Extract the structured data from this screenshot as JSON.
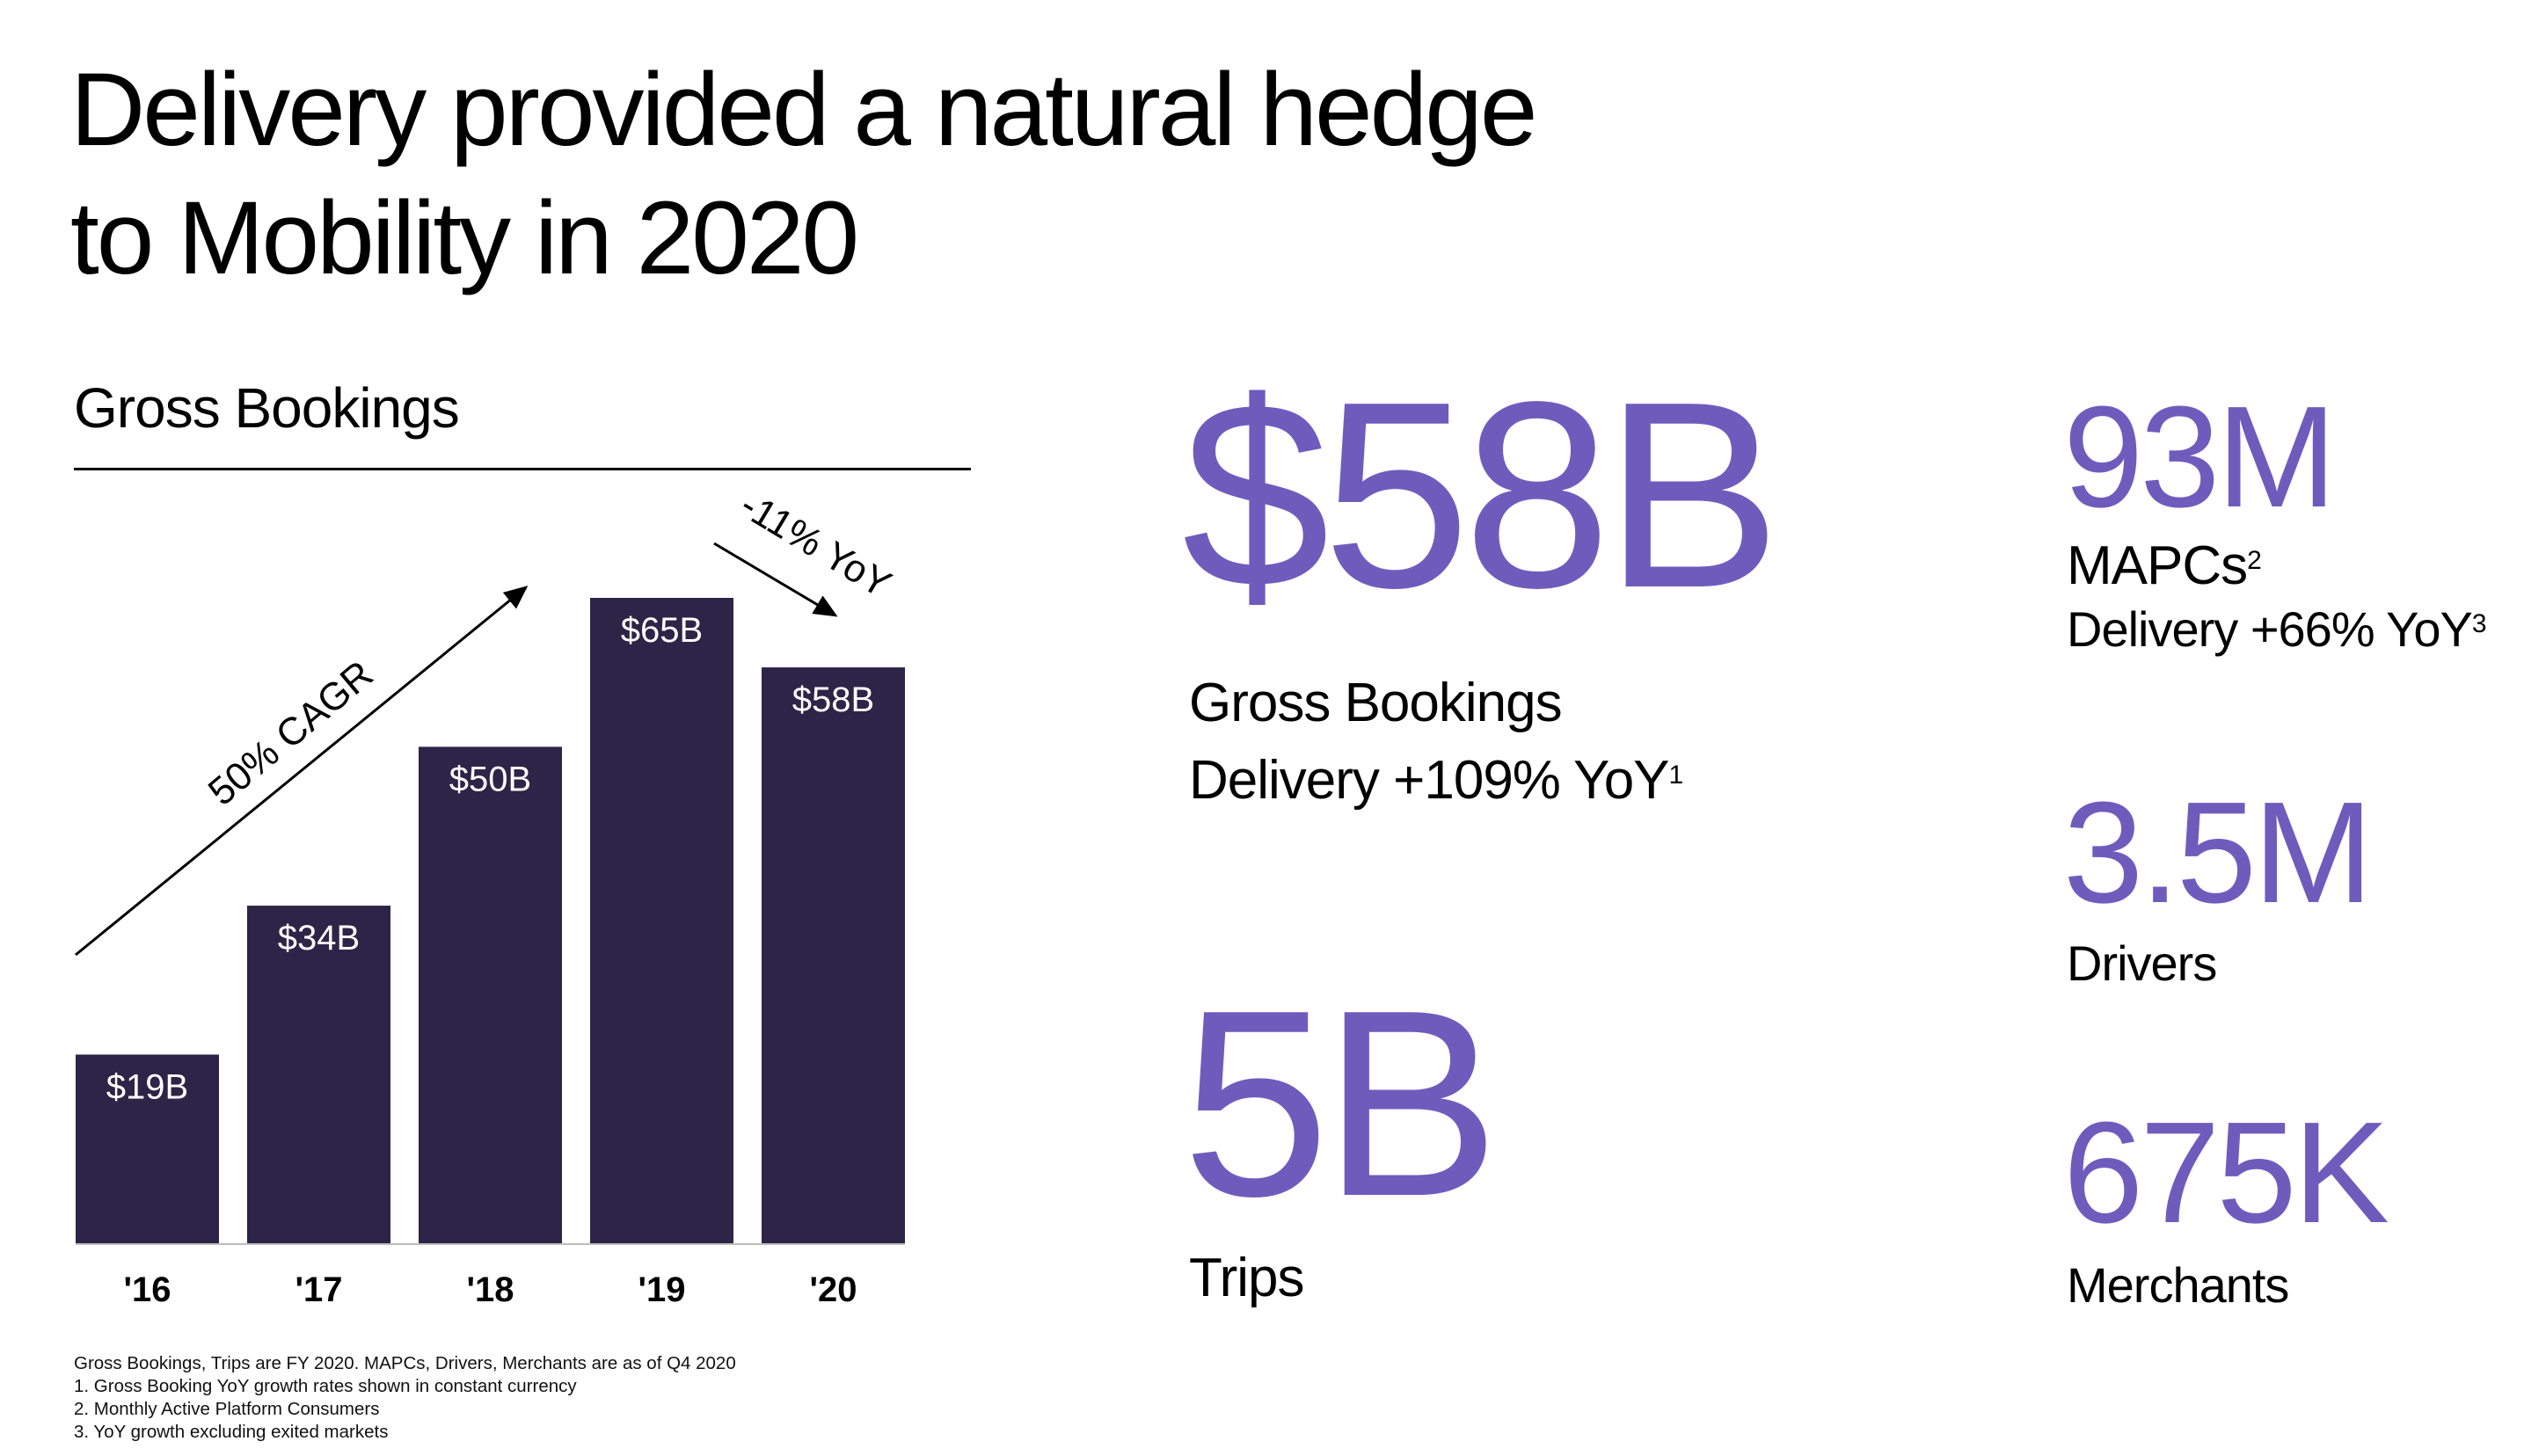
{
  "title": {
    "line1": "Delivery provided a natural hedge",
    "line2": "to Mobility in 2020"
  },
  "chart": {
    "heading": "Gross Bookings",
    "cagr_annotation": "50% CAGR",
    "yoy_annotation": "-11% YoY"
  },
  "chart_data": {
    "type": "bar",
    "title": "Gross Bookings",
    "categories": [
      "'16",
      "'17",
      "'18",
      "'19",
      "'20"
    ],
    "values": [
      19,
      34,
      50,
      65,
      58
    ],
    "value_labels": [
      "$19B",
      "$34B",
      "$50B",
      "$65B",
      "$58B"
    ],
    "units": "$B",
    "xlabel": "",
    "ylabel": "",
    "ylim": [
      0,
      65
    ],
    "grid": false,
    "bar_color": "#2c2547",
    "label_color": "#ffffff",
    "annotations": [
      "50% CAGR",
      "-11% YoY"
    ]
  },
  "stats": {
    "gross_bookings": {
      "value": "$58B",
      "label": "Gross Bookings",
      "sub": "Delivery +109% YoY",
      "sub_note": "1"
    },
    "trips": {
      "value": "5B",
      "label": "Trips"
    },
    "mapcs": {
      "value": "93M",
      "label": "MAPCs",
      "label_note": "2",
      "sub": "Delivery +66% YoY",
      "sub_note": "3"
    },
    "drivers": {
      "value": "3.5M",
      "label": "Drivers"
    },
    "merchants": {
      "value": "675K",
      "label": "Merchants"
    }
  },
  "footnotes": [
    "Gross Bookings, Trips are FY 2020. MAPCs, Drivers, Merchants are as of Q4 2020",
    "1.  Gross Booking YoY growth rates shown in constant currency",
    "2.  Monthly Active Platform Consumers",
    "3.  YoY growth excluding exited markets"
  ],
  "colors": {
    "accent": "#6e5cbd",
    "bar": "#2c2547",
    "text": "#000000",
    "background": "#ffffff"
  }
}
